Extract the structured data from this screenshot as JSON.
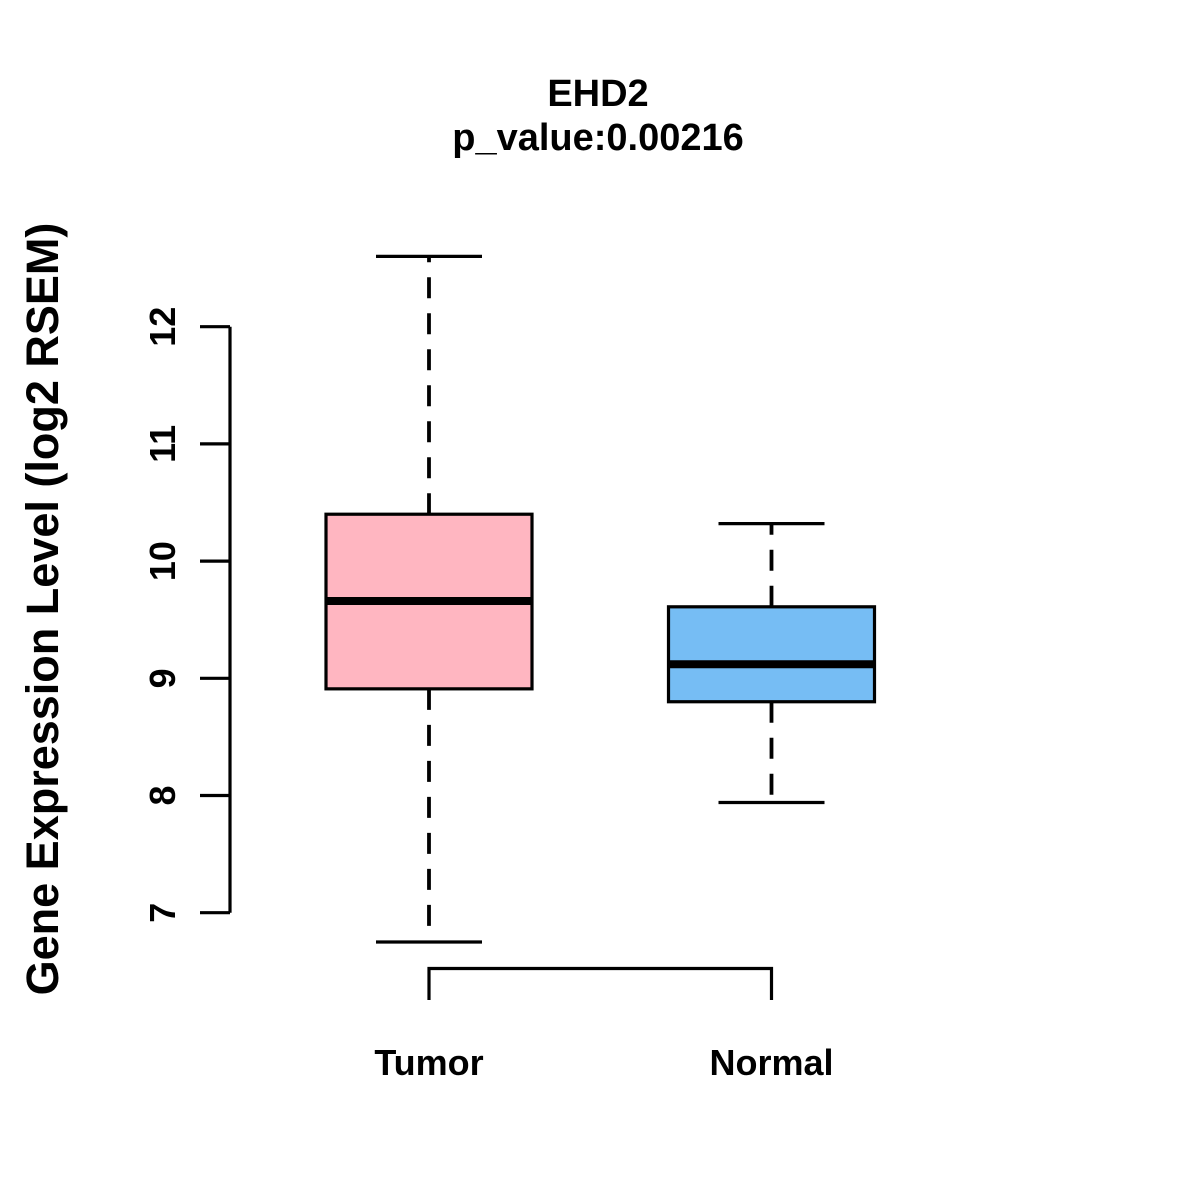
{
  "chart_data": {
    "type": "boxplot",
    "title": "EHD2",
    "subtitle": "p_value:0.00216",
    "p_value": 0.00216,
    "ylabel": "Gene Expression Level (log2 RSEM)",
    "xlabel": "",
    "y_axis": {
      "min": 7,
      "max": 12,
      "ticks": [
        7,
        8,
        9,
        10,
        11,
        12
      ]
    },
    "grid": false,
    "legend": "none",
    "groups": [
      {
        "label": "Tumor",
        "color": "#FFB6C1",
        "whisker_low": 6.75,
        "q1": 8.91,
        "median": 9.66,
        "q3": 10.4,
        "whisker_high": 12.6
      },
      {
        "label": "Normal",
        "color": "#76BDF4",
        "whisker_low": 7.94,
        "q1": 8.8,
        "median": 9.12,
        "q3": 9.61,
        "whisker_high": 10.32
      }
    ]
  }
}
